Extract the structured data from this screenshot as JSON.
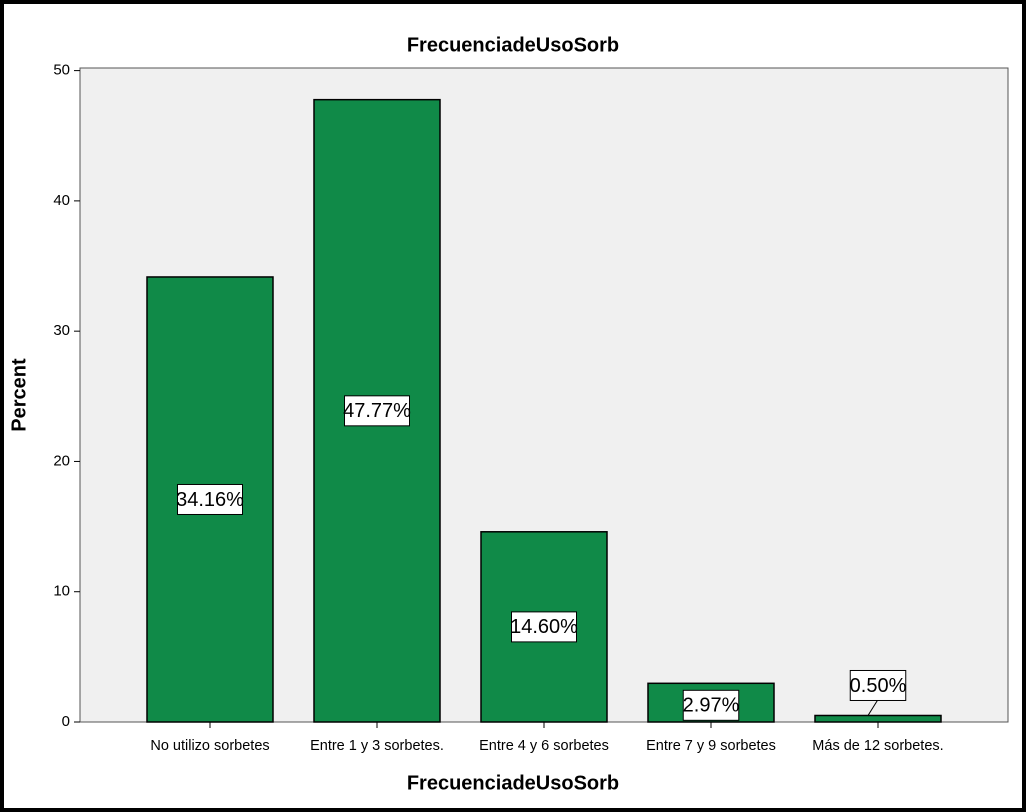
{
  "chart_data": {
    "type": "bar",
    "title": "FrecuenciadeUsoSorb",
    "x_label": "FrecuenciadeUsoSorb",
    "y_label": "Percent",
    "categories": [
      "No utilizo sorbetes",
      "Entre 1 y 3 sorbetes.",
      "Entre 4 y 6 sorbetes",
      "Entre 7 y 9 sorbetes",
      "Más de 12 sorbetes."
    ],
    "values": [
      34.16,
      47.77,
      14.6,
      2.97,
      0.5
    ],
    "value_labels": [
      "34.16%",
      "47.77%",
      "14.60%",
      "2.97%",
      "0.50%"
    ],
    "color": "#108a48",
    "ylim": [
      0,
      50.2
    ],
    "yticks": [
      0,
      10,
      20,
      30,
      40,
      50
    ],
    "grid": false
  }
}
